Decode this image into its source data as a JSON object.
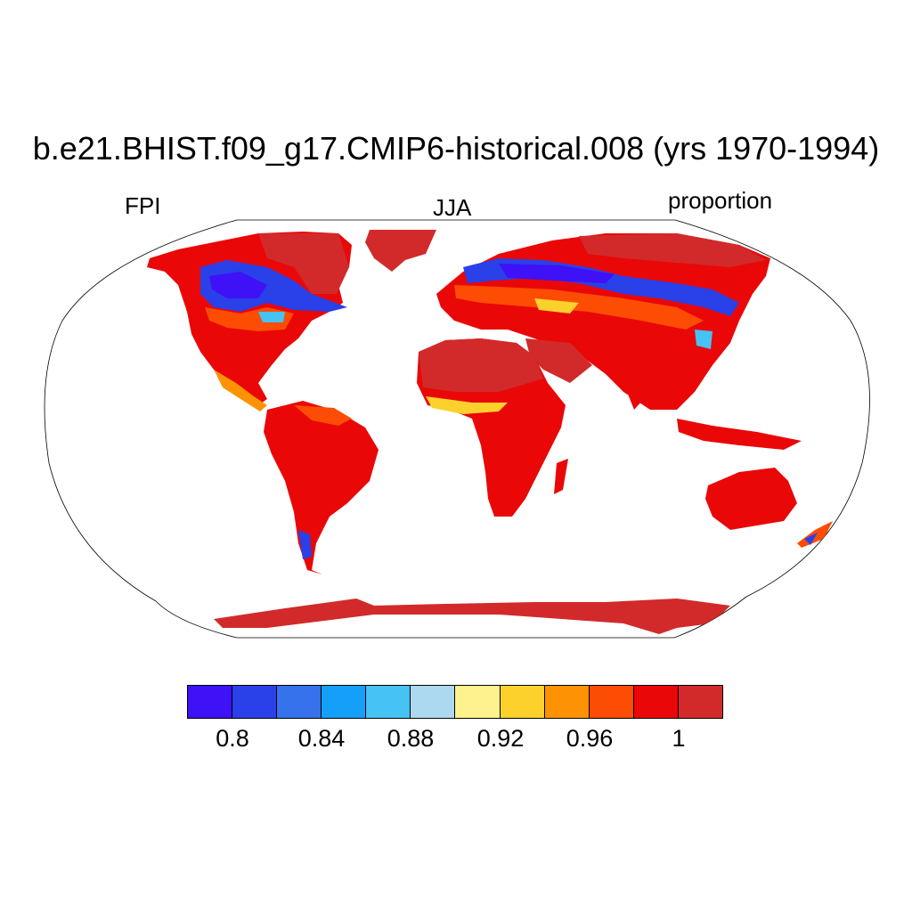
{
  "header": {
    "title": "b.e21.BHIST.f09_g17.CMIP6-historical.008 (yrs 1970-1994)",
    "left_label": "FPI",
    "center_label": "JJA",
    "right_label": "proportion"
  },
  "map": {
    "projection": "Robinson",
    "colormap": "blue-to-red",
    "value_range": [
      0.78,
      1.02
    ]
  },
  "colorbar": {
    "colors": [
      "#3e11f6",
      "#2a40e8",
      "#3572ec",
      "#14a0f8",
      "#46c2f4",
      "#acd9f0",
      "#fdf28e",
      "#fdd12c",
      "#fd9304",
      "#fd4c04",
      "#ea0707",
      "#d22a2a"
    ],
    "tick_labels": [
      "0.8",
      "0.84",
      "0.88",
      "0.92",
      "0.96",
      "1"
    ]
  }
}
